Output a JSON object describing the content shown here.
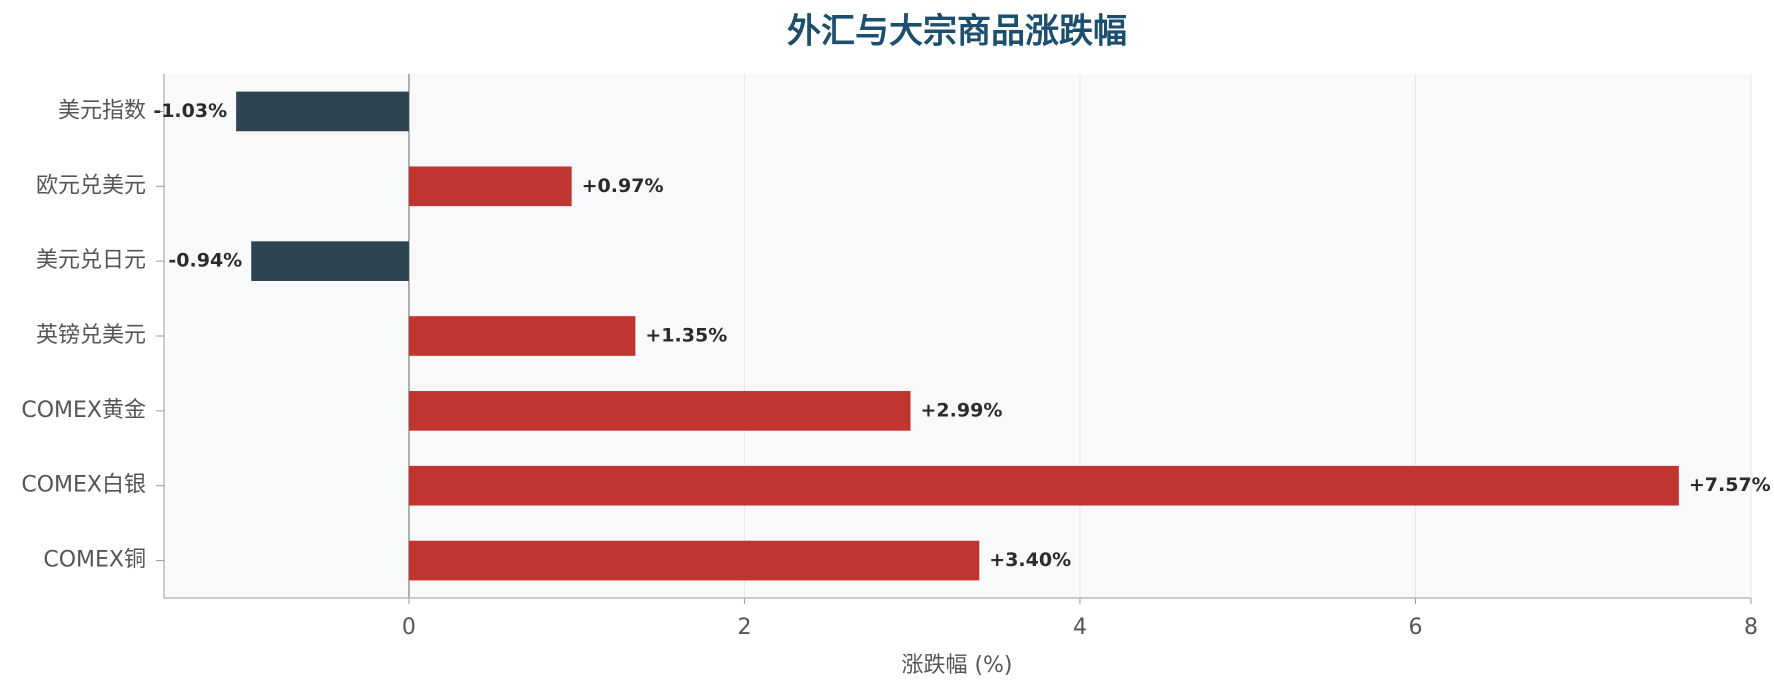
{
  "chart_data": {
    "type": "bar",
    "orientation": "horizontal",
    "title": "外汇与大宗商品涨跌幅",
    "xlabel": "涨跌幅 (%)",
    "categories": [
      "美元指数",
      "欧元兑美元",
      "美元兑日元",
      "英镑兑美元",
      "COMEX黄金",
      "COMEX白银",
      "COMEX铜"
    ],
    "values": [
      -1.03,
      0.97,
      -0.94,
      1.35,
      2.99,
      7.57,
      3.4
    ],
    "value_labels": [
      "-1.03%",
      "+0.97%",
      "-0.94%",
      "+1.35%",
      "+2.99%",
      "+7.57%",
      "+3.40%"
    ],
    "positive_color": "#c0352f",
    "negative_color": "#2e4452",
    "xlim": [
      -1.46,
      8
    ],
    "xticks": [
      0,
      2,
      4,
      6,
      8
    ],
    "grid": true
  }
}
